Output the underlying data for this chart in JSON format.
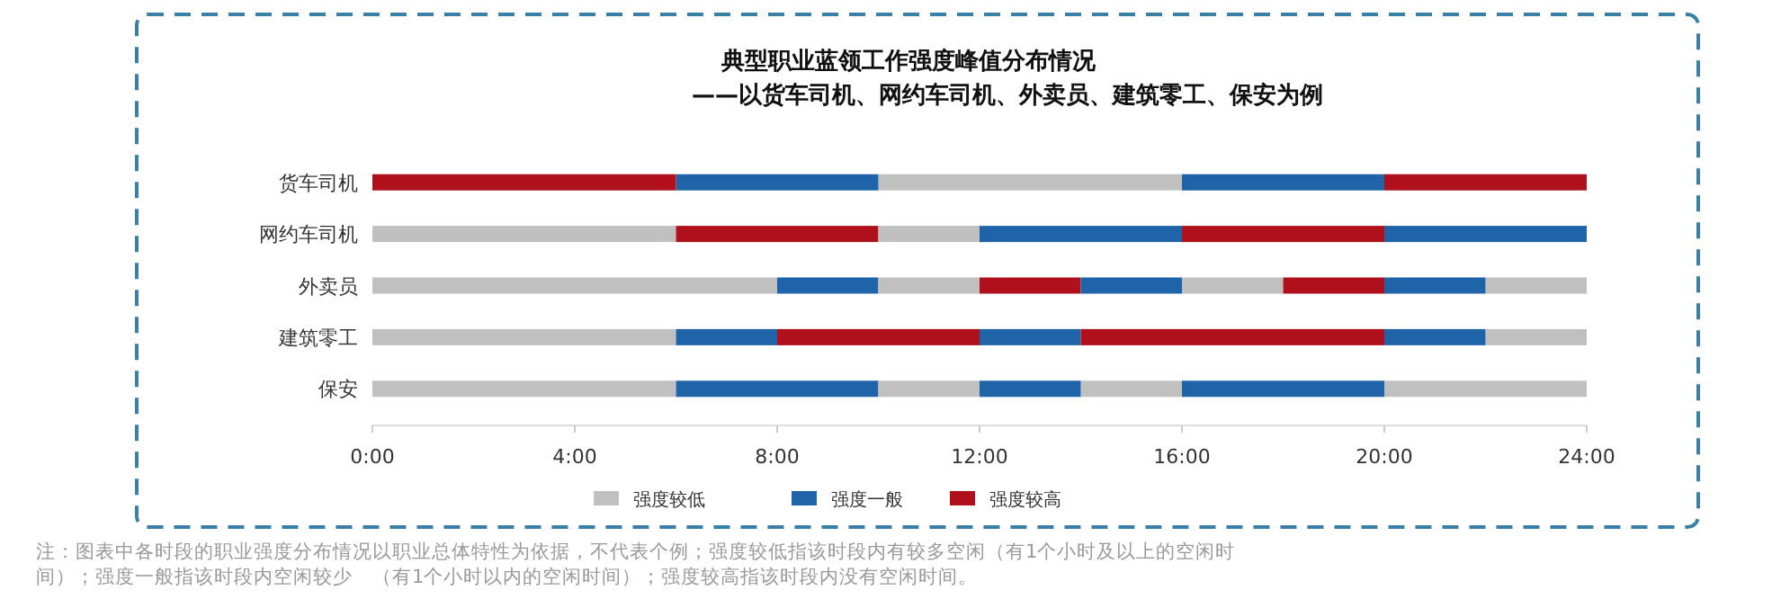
{
  "chart_data": {
    "type": "bar",
    "orientation": "horizontal",
    "title": "典型职业蓝领工作强度峰值分布情况",
    "subtitle": "——以货车司机、网约车司机、外卖员、建筑零工、保安为例",
    "categories": [
      "货车司机",
      "网约车司机",
      "外卖员",
      "建筑零工",
      "保安"
    ],
    "series": [
      {
        "name": "强度较低",
        "color": "#c0c0c0",
        "base": [
          10,
          0,
          0,
          0,
          0
        ],
        "values": [
          6,
          6,
          8,
          6,
          6
        ]
      },
      {
        "name": "强度一般",
        "color": "#1f64a8",
        "base": [
          6,
          12,
          8,
          6,
          6
        ],
        "values": [
          4,
          4,
          2,
          2,
          4
        ]
      },
      {
        "name": "强度较高",
        "color": "#b0101c",
        "base": [
          0,
          6,
          12,
          8,
          null
        ],
        "values": [
          6,
          4,
          2,
          4,
          null
        ]
      },
      {
        "color": "#c0c0c0",
        "base": [
          null,
          10,
          10,
          22,
          10
        ],
        "values": [
          null,
          2,
          2,
          2,
          2
        ]
      },
      {
        "color": "#c0c0c0",
        "base": [
          null,
          null,
          16,
          null,
          14
        ],
        "values": [
          null,
          null,
          2,
          null,
          2
        ]
      },
      {
        "color": "#c0c0c0",
        "base": [
          null,
          null,
          22,
          null,
          20
        ],
        "values": [
          null,
          null,
          2,
          null,
          4
        ]
      },
      {
        "color": "#1f64a8",
        "base": [
          16,
          20,
          14,
          12,
          12
        ],
        "values": [
          4,
          4,
          2,
          2,
          2
        ]
      },
      {
        "color": "#1f64a8",
        "base": [
          null,
          null,
          20,
          20,
          16
        ],
        "values": [
          null,
          null,
          2,
          2,
          4
        ]
      },
      {
        "color": "#b0101c",
        "base": [
          20,
          16,
          18,
          14,
          null
        ],
        "values": [
          4,
          4,
          2,
          6,
          null
        ]
      }
    ],
    "xlim": [
      0,
      24
    ],
    "xticks": [
      {
        "value": 0,
        "label": "0:00"
      },
      {
        "value": 4,
        "label": "4:00"
      },
      {
        "value": 8,
        "label": "8:00"
      },
      {
        "value": 12,
        "label": "12:00"
      },
      {
        "value": 16,
        "label": "16:00"
      },
      {
        "value": 20,
        "label": "20:00"
      },
      {
        "value": 24,
        "label": "24:00"
      }
    ],
    "legend": "bottom",
    "annotations": [
      "注：图表中各时段的职业强度分布情况以职业总体特性为依据，不代表个例；强度较低指该时段内有较多空闲（有1个小时及以上的空闲时间）；强度一般指该时段内空闲较少　（有1个小时以内的空闲时间）；强度较高指该时段内没有空闲时间。"
    ]
  }
}
